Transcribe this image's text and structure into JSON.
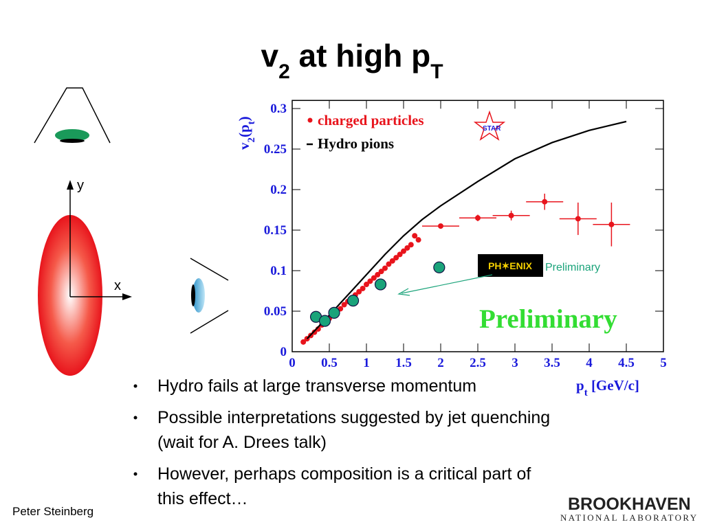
{
  "slide_title": [
    "v",
    "2",
    " at high p",
    "T"
  ],
  "diagram": {
    "y_axis": "y",
    "x_axis": "x"
  },
  "chart_data": {
    "type": "scatter",
    "xlabel": [
      "p",
      "t",
      " [GeV/c]"
    ],
    "ylabel": [
      "v",
      "2",
      "(p",
      "t",
      ")"
    ],
    "xlim": [
      0,
      5
    ],
    "xticks": [
      0,
      0.5,
      1,
      1.5,
      2,
      2.5,
      3,
      3.5,
      4,
      4.5,
      5
    ],
    "ylim": [
      0,
      0.31
    ],
    "yticks": [
      0,
      0.05,
      0.1,
      0.15,
      0.2,
      0.25,
      0.3
    ],
    "series": [
      {
        "name": "charged particles",
        "style": "points",
        "color": "#e8141c",
        "x": [
          0.15,
          0.2,
          0.25,
          0.3,
          0.35,
          0.4,
          0.45,
          0.5,
          0.55,
          0.6,
          0.65,
          0.7,
          0.75,
          0.8,
          0.85,
          0.9,
          0.95,
          1.0,
          1.05,
          1.1,
          1.15,
          1.2,
          1.25,
          1.3,
          1.35,
          1.4,
          1.45,
          1.5,
          1.55,
          1.6,
          1.65,
          1.7,
          2.0,
          2.5,
          2.95,
          3.4,
          3.85,
          4.3
        ],
        "values": [
          0.012,
          0.016,
          0.02,
          0.024,
          0.028,
          0.033,
          0.037,
          0.041,
          0.045,
          0.049,
          0.053,
          0.058,
          0.062,
          0.066,
          0.07,
          0.074,
          0.078,
          0.083,
          0.087,
          0.091,
          0.095,
          0.099,
          0.103,
          0.108,
          0.112,
          0.116,
          0.12,
          0.124,
          0.128,
          0.132,
          0.143,
          0.138,
          0.155,
          0.165,
          0.168,
          0.185,
          0.164,
          0.157
        ],
        "xerr": [
          null,
          null,
          null,
          null,
          null,
          null,
          null,
          null,
          null,
          null,
          null,
          null,
          null,
          null,
          null,
          null,
          null,
          null,
          null,
          null,
          null,
          null,
          null,
          null,
          null,
          null,
          null,
          null,
          null,
          null,
          null,
          null,
          0.25,
          0.25,
          0.25,
          0.25,
          0.25,
          0.25
        ],
        "yerr": [
          null,
          null,
          null,
          null,
          null,
          null,
          null,
          null,
          null,
          null,
          null,
          null,
          null,
          null,
          null,
          null,
          null,
          null,
          null,
          null,
          null,
          null,
          null,
          null,
          null,
          null,
          null,
          null,
          null,
          null,
          null,
          null,
          0.003,
          0.004,
          0.006,
          0.01,
          0.02,
          0.027
        ]
      },
      {
        "name": "Hydro pions",
        "style": "line",
        "color": "#000000",
        "x": [
          0.2,
          0.5,
          0.75,
          1.0,
          1.25,
          1.5,
          1.75,
          2.0,
          2.5,
          3.0,
          3.5,
          4.0,
          4.5
        ],
        "values": [
          0.016,
          0.045,
          0.07,
          0.095,
          0.12,
          0.143,
          0.163,
          0.18,
          0.21,
          0.238,
          0.258,
          0.273,
          0.284
        ]
      },
      {
        "style": "open-points",
        "color": "#1aa37a",
        "x": [
          0.32,
          0.44,
          0.565,
          0.82,
          1.19,
          1.98
        ],
        "values": [
          0.043,
          0.038,
          0.048,
          0.063,
          0.083,
          0.104
        ]
      }
    ],
    "annotations": {
      "star": "STAR",
      "phenix": "PH✶ENIX",
      "phenix_note": "Preliminary",
      "big_note": "Preliminary"
    }
  },
  "bullets": [
    [
      "Hydro fails at large transverse momentum"
    ],
    [
      "Possible interpretations suggested by jet quenching",
      "(wait for A. Drees talk)"
    ],
    [
      "However, perhaps composition is a critical part of",
      "this effect…"
    ]
  ],
  "footer": "Peter Steinberg",
  "logo": [
    "BROOKHAVEN",
    "NATIONAL LABORATORY"
  ]
}
